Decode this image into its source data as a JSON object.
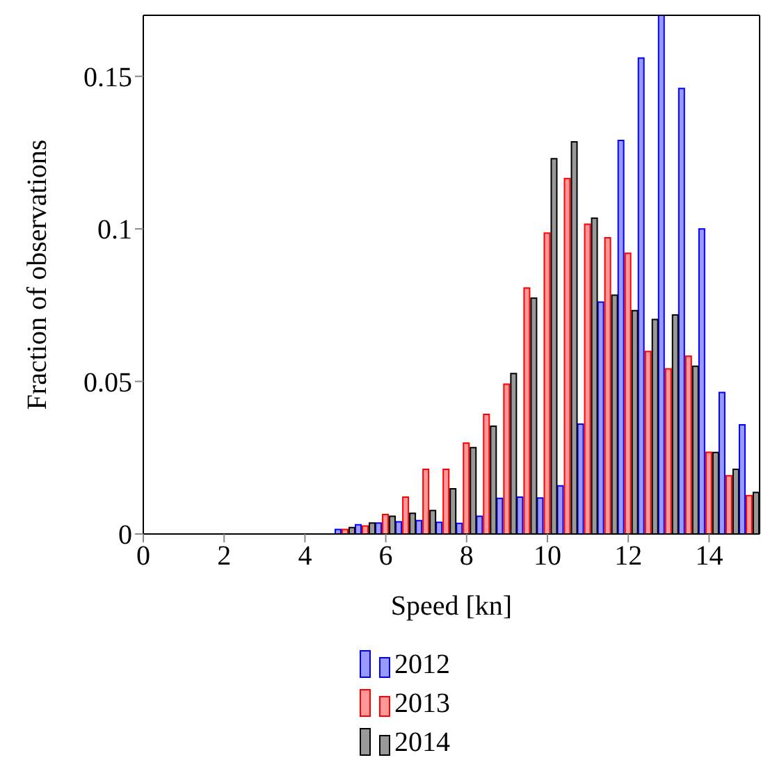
{
  "chart_data": {
    "type": "bar",
    "xlabel": "Speed [kn]",
    "ylabel": "Fraction of observations",
    "x": [
      5,
      5.5,
      6,
      6.5,
      7,
      7.5,
      8,
      8.5,
      9,
      9.5,
      10,
      10.5,
      11,
      11.5,
      12,
      12.5,
      13,
      13.5,
      14,
      14.5,
      15
    ],
    "series": [
      {
        "name": "2012",
        "color": "#0000ff",
        "values": [
          0.0015,
          0.003,
          0.0036,
          0.004,
          0.0044,
          0.0038,
          0.0035,
          0.0058,
          0.0117,
          0.0121,
          0.0118,
          0.0158,
          0.036,
          0.076,
          0.129,
          0.156,
          0.17,
          0.146,
          0.1,
          0.0464,
          0.0358
        ]
      },
      {
        "name": "2013",
        "color": "#ff0000",
        "values": [
          0.0015,
          0.0026,
          0.0064,
          0.0121,
          0.0212,
          0.0212,
          0.0298,
          0.0392,
          0.0491,
          0.0806,
          0.0986,
          0.1165,
          0.1015,
          0.0971,
          0.092,
          0.0598,
          0.0541,
          0.0583,
          0.0268,
          0.0191,
          0.0126
        ]
      },
      {
        "name": "2014",
        "color": "#000000",
        "values": [
          0.0021,
          0.0036,
          0.0058,
          0.0068,
          0.0077,
          0.0148,
          0.0283,
          0.0353,
          0.0526,
          0.0773,
          0.123,
          0.1285,
          0.1035,
          0.0783,
          0.0732,
          0.0703,
          0.0718,
          0.055,
          0.0267,
          0.0212,
          0.0136
        ]
      }
    ],
    "xlim": [
      0,
      15.25
    ],
    "xticks": [
      0,
      2,
      4,
      6,
      8,
      10,
      12,
      14
    ],
    "ylim": [
      0,
      0.17
    ],
    "yticks": [
      0,
      0.05,
      0.1,
      0.15
    ],
    "grid": false,
    "legend": "bottom"
  }
}
